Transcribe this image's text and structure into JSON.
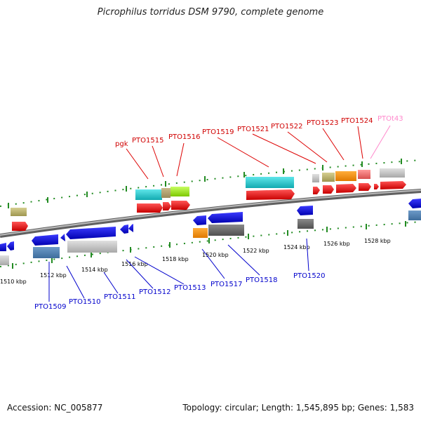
{
  "title": "Picrophilus torridus DSM 9790, complete genome",
  "footer": {
    "accession": "Accession: NC_005877",
    "summary": "Topology: circular; Length: 1,545,895 bp; Genes: 1,583"
  },
  "scale_ticks": [
    "1510 kbp",
    "1512 kbp",
    "1514 kbp",
    "1516 kbp",
    "1518 kbp",
    "1520 kbp",
    "1522 kbp",
    "1524 kbp",
    "1526 kbp",
    "1528 kbp"
  ],
  "top_labels": [
    {
      "text": "pgk",
      "color": "#d00000"
    },
    {
      "text": "PTO1515",
      "color": "#d00000"
    },
    {
      "text": "PTO1516",
      "color": "#d00000"
    },
    {
      "text": "PTO1519",
      "color": "#d00000"
    },
    {
      "text": "PTO1521",
      "color": "#d00000"
    },
    {
      "text": "PTO1522",
      "color": "#d00000"
    },
    {
      "text": "PTO1523",
      "color": "#d00000"
    },
    {
      "text": "PTO1524",
      "color": "#d00000"
    },
    {
      "text": "PTOt43",
      "color": "#ff88cc"
    }
  ],
  "bottom_labels": [
    {
      "text": "PTO1509",
      "color": "#0000cc"
    },
    {
      "text": "PTO1510",
      "color": "#0000cc"
    },
    {
      "text": "PTO1511",
      "color": "#0000cc"
    },
    {
      "text": "PTO1512",
      "color": "#0000cc"
    },
    {
      "text": "PTO1513",
      "color": "#0000cc"
    },
    {
      "text": "PTO1517",
      "color": "#0000cc"
    },
    {
      "text": "PTO1518",
      "color": "#0000cc"
    },
    {
      "text": "PTO1520",
      "color": "#0000cc"
    }
  ],
  "colors": {
    "forward_strand": "#ee0000",
    "reverse_strand": "#0000ee",
    "backbone": "#888888",
    "tick_marks": "#228b22"
  }
}
